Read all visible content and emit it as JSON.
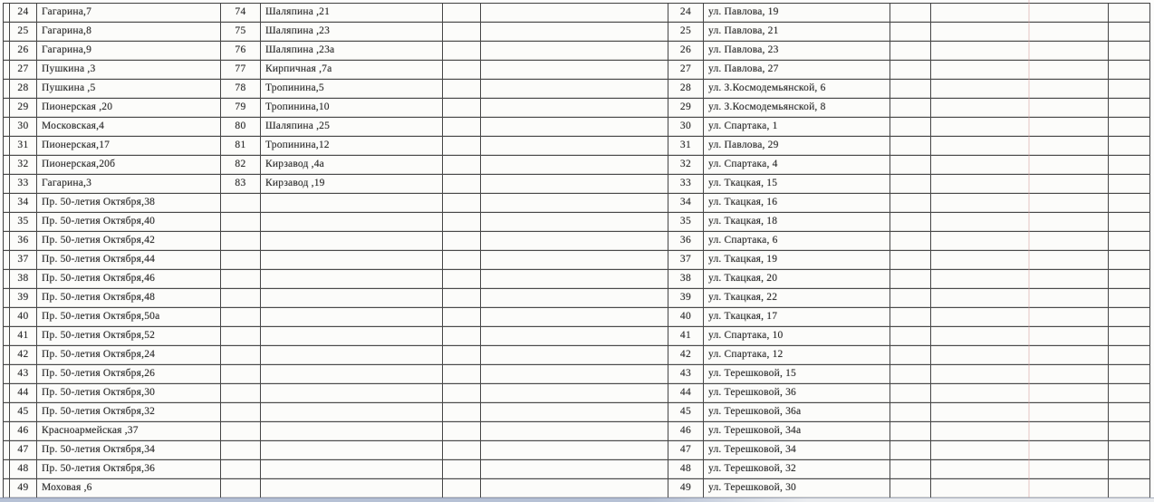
{
  "colors": {
    "paper": "#fcfcfa",
    "grid_line": "#464646",
    "text": "#2d2d2d",
    "scan_artifact_pink": "rgba(213,158,158,0.30)",
    "bottom_strip_left": "#b6c1d5",
    "bottom_strip_right": "#ebedf0"
  },
  "table": {
    "left_block": {
      "rows": [
        {
          "n": "24",
          "address": "Гагарина,7"
        },
        {
          "n": "25",
          "address": "Гагарина,8"
        },
        {
          "n": "26",
          "address": "Гагарина,9"
        },
        {
          "n": "27",
          "address": "Пушкина ,3"
        },
        {
          "n": "28",
          "address": "Пушкина ,5"
        },
        {
          "n": "29",
          "address": "Пионерская ,20"
        },
        {
          "n": "30",
          "address": "Московская,4"
        },
        {
          "n": "31",
          "address": "Пионерская,17"
        },
        {
          "n": "32",
          "address": "Пионерская,20б"
        },
        {
          "n": "33",
          "address": "Гагарина,3"
        },
        {
          "n": "34",
          "address": "Пр. 50-летия Октября,38"
        },
        {
          "n": "35",
          "address": "Пр. 50-летия Октября,40"
        },
        {
          "n": "36",
          "address": "Пр. 50-летия Октября,42"
        },
        {
          "n": "37",
          "address": "Пр. 50-летия Октября,44"
        },
        {
          "n": "38",
          "address": "Пр. 50-летия Октября,46"
        },
        {
          "n": "39",
          "address": "Пр. 50-летия Октября,48"
        },
        {
          "n": "40",
          "address": "Пр. 50-летия Октября,50а"
        },
        {
          "n": "41",
          "address": "Пр. 50-летия Октября,52"
        },
        {
          "n": "42",
          "address": "Пр. 50-летия Октября,24"
        },
        {
          "n": "43",
          "address": "Пр. 50-летия Октября,26"
        },
        {
          "n": "44",
          "address": "Пр. 50-летия Октября,30"
        },
        {
          "n": "45",
          "address": "Пр. 50-летия Октября,32"
        },
        {
          "n": "46",
          "address": "Красноармейская ,37"
        },
        {
          "n": "47",
          "address": "Пр. 50-летия Октября,34"
        },
        {
          "n": "48",
          "address": "Пр. 50-летия Октября,36"
        },
        {
          "n": "49",
          "address": "Моховая ,6"
        }
      ]
    },
    "middle_block": {
      "rows": [
        {
          "n": "74",
          "address": "Шаляпина ,21"
        },
        {
          "n": "75",
          "address": "Шаляпина ,23"
        },
        {
          "n": "76",
          "address": "Шаляпина ,23а"
        },
        {
          "n": "77",
          "address": "Кирпичная ,7а"
        },
        {
          "n": "78",
          "address": "Тропинина,5"
        },
        {
          "n": "79",
          "address": "Тропинина,10"
        },
        {
          "n": "80",
          "address": "Шаляпина ,25"
        },
        {
          "n": "81",
          "address": "Тропинина,12"
        },
        {
          "n": "82",
          "address": "Кирзавод ,4а"
        },
        {
          "n": "83",
          "address": "Кирзавод ,19"
        }
      ]
    },
    "right_block": {
      "rows": [
        {
          "n": "24",
          "address": "ул. Павлова, 19"
        },
        {
          "n": "25",
          "address": "ул. Павлова, 21"
        },
        {
          "n": "26",
          "address": "ул. Павлова, 23"
        },
        {
          "n": "27",
          "address": "ул. Павлова, 27"
        },
        {
          "n": "28",
          "address": "ул. З.Космодемьянской, 6"
        },
        {
          "n": "29",
          "address": "ул. З.Космодемьянской, 8"
        },
        {
          "n": "30",
          "address": "ул. Спартака, 1"
        },
        {
          "n": "31",
          "address": "ул. Павлова, 29"
        },
        {
          "n": "32",
          "address": "ул. Спартака, 4"
        },
        {
          "n": "33",
          "address": "ул. Ткацкая, 15"
        },
        {
          "n": "34",
          "address": "ул. Ткацкая, 16"
        },
        {
          "n": "35",
          "address": "ул. Ткацкая, 18"
        },
        {
          "n": "36",
          "address": "ул. Спартака, 6"
        },
        {
          "n": "37",
          "address": "ул. Ткацкая, 19"
        },
        {
          "n": "38",
          "address": "ул. Ткацкая, 20"
        },
        {
          "n": "39",
          "address": "ул. Ткацкая, 22"
        },
        {
          "n": "40",
          "address": "ул. Ткацкая, 17"
        },
        {
          "n": "41",
          "address": "ул. Спартака, 10"
        },
        {
          "n": "42",
          "address": "ул. Спартака, 12"
        },
        {
          "n": "43",
          "address": "ул. Терешковой, 15"
        },
        {
          "n": "44",
          "address": "ул. Терешковой, 36"
        },
        {
          "n": "45",
          "address": "ул. Терешковой, 36а"
        },
        {
          "n": "46",
          "address": "ул. Терешковой, 34а"
        },
        {
          "n": "47",
          "address": "ул. Терешковой, 34"
        },
        {
          "n": "48",
          "address": "ул. Терешковой, 32"
        },
        {
          "n": "49",
          "address": "ул. Терешковой, 30"
        }
      ]
    }
  }
}
